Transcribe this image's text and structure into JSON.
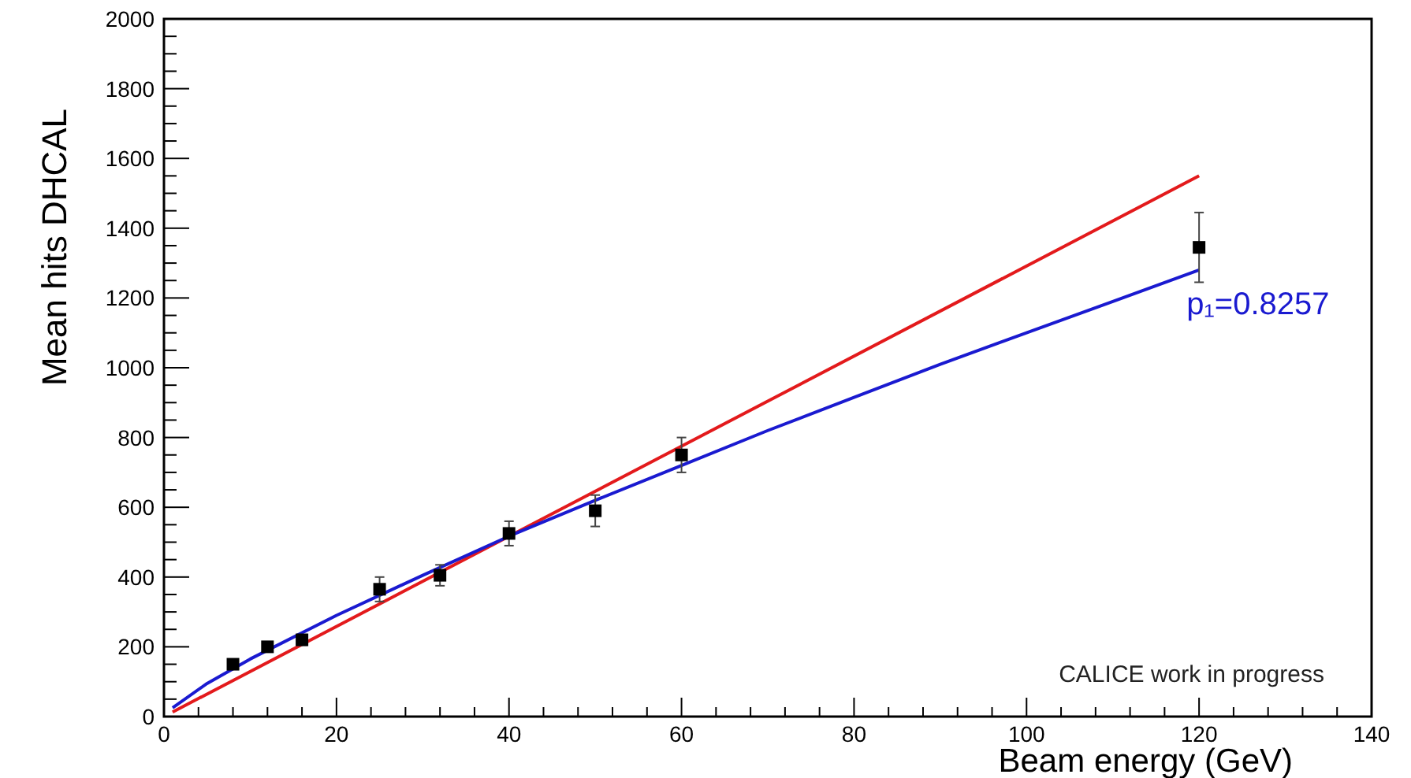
{
  "chart_data": {
    "type": "scatter",
    "xlabel": "Beam energy (GeV)",
    "ylabel": "Mean hits DHCAL",
    "xlim": [
      0,
      140
    ],
    "ylim": [
      0,
      2000
    ],
    "xticks": [
      0,
      {
        "value": 4,
        "label": null
      },
      {
        "value": 8,
        "label": null
      },
      {
        "value": 12,
        "label": null
      },
      {
        "value": 16,
        "label": null
      },
      20,
      {
        "value": 24,
        "label": null
      },
      {
        "value": 28,
        "label": null
      },
      {
        "value": 32,
        "label": null
      },
      {
        "value": 36,
        "label": null
      },
      40,
      {
        "value": 44,
        "label": null
      },
      {
        "value": 48,
        "label": null
      },
      {
        "value": 52,
        "label": null
      },
      {
        "value": 56,
        "label": null
      },
      60,
      {
        "value": 64,
        "label": null
      },
      {
        "value": 68,
        "label": null
      },
      {
        "value": 72,
        "label": null
      },
      {
        "value": 76,
        "label": null
      },
      80,
      {
        "value": 84,
        "label": null
      },
      {
        "value": 88,
        "label": null
      },
      {
        "value": 92,
        "label": null
      },
      {
        "value": 96,
        "label": null
      },
      100,
      {
        "value": 104,
        "label": null
      },
      {
        "value": 108,
        "label": null
      },
      {
        "value": 112,
        "label": null
      },
      {
        "value": 116,
        "label": null
      },
      120,
      {
        "value": 124,
        "label": null
      },
      {
        "value": 128,
        "label": null
      },
      {
        "value": 132,
        "label": null
      },
      {
        "value": 136,
        "label": null
      },
      140
    ],
    "yticks": [
      0,
      {
        "value": 50,
        "label": null
      },
      {
        "value": 100,
        "label": null
      },
      {
        "value": 150,
        "label": null
      },
      200,
      {
        "value": 250,
        "label": null
      },
      {
        "value": 300,
        "label": null
      },
      {
        "value": 350,
        "label": null
      },
      400,
      {
        "value": 450,
        "label": null
      },
      {
        "value": 500,
        "label": null
      },
      {
        "value": 550,
        "label": null
      },
      600,
      {
        "value": 650,
        "label": null
      },
      {
        "value": 700,
        "label": null
      },
      {
        "value": 750,
        "label": null
      },
      800,
      {
        "value": 850,
        "label": null
      },
      {
        "value": 900,
        "label": null
      },
      {
        "value": 950,
        "label": null
      },
      1000,
      {
        "value": 1050,
        "label": null
      },
      {
        "value": 1100,
        "label": null
      },
      {
        "value": 1150,
        "label": null
      },
      1200,
      {
        "value": 1250,
        "label": null
      },
      {
        "value": 1300,
        "label": null
      },
      {
        "value": 1350,
        "label": null
      },
      1400,
      {
        "value": 1450,
        "label": null
      },
      {
        "value": 1500,
        "label": null
      },
      {
        "value": 1550,
        "label": null
      },
      1600,
      {
        "value": 1650,
        "label": null
      },
      {
        "value": 1700,
        "label": null
      },
      {
        "value": 1750,
        "label": null
      },
      1800,
      {
        "value": 1850,
        "label": null
      },
      {
        "value": 1900,
        "label": null
      },
      {
        "value": 1950,
        "label": null
      },
      2000
    ],
    "grid": false,
    "series": [
      {
        "type": "line",
        "color": "#e31a1c",
        "marker": "none",
        "x": [
          1,
          120
        ],
        "values": [
          13,
          1550
        ]
      },
      {
        "type": "line",
        "color": "#1a1ad0",
        "marker": "none",
        "x": [
          1,
          5,
          10,
          20,
          30,
          40,
          50,
          60,
          70,
          80,
          90,
          100,
          110,
          120
        ],
        "values": [
          25,
          95,
          165,
          290,
          405,
          517,
          620,
          720,
          820,
          915,
          1010,
          1100,
          1190,
          1280
        ]
      },
      {
        "color": "#000000",
        "marker": "square",
        "x": [
          8,
          12,
          16,
          25,
          32,
          40,
          50,
          60,
          120
        ],
        "values": [
          150,
          200,
          220,
          365,
          405,
          525,
          590,
          750,
          1345
        ],
        "errors": [
          10,
          10,
          15,
          35,
          30,
          35,
          45,
          50,
          100
        ]
      }
    ],
    "annotations": [
      {
        "text": "p₁=0.8257",
        "x": 120,
        "y": 1280
      },
      "CALICE work in progress"
    ]
  }
}
